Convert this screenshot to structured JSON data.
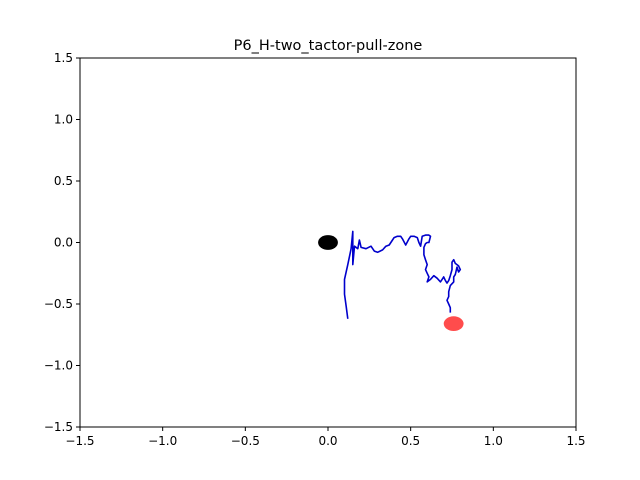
{
  "chart_data": {
    "type": "scatter",
    "title": "P6_H-two_tactor-pull-zone",
    "xlabel": "",
    "ylabel": "",
    "xlim": [
      -1.5,
      1.5
    ],
    "ylim": [
      -1.5,
      1.5
    ],
    "xticks": [
      "−1.5",
      "−1.0",
      "−0.5",
      "0.0",
      "0.5",
      "1.0",
      "1.5"
    ],
    "yticks": [
      "−1.5",
      "−1.0",
      "−0.5",
      "0.0",
      "0.5",
      "1.0",
      "1.5"
    ],
    "xtick_values": [
      -1.5,
      -1.0,
      -0.5,
      0.0,
      0.5,
      1.0,
      1.5
    ],
    "ytick_values": [
      -1.5,
      -1.0,
      -0.5,
      0.0,
      0.5,
      1.0,
      1.5
    ],
    "grid": false,
    "trajectory": {
      "color": "#0000cc",
      "points": [
        [
          0.12,
          -0.62
        ],
        [
          0.11,
          -0.52
        ],
        [
          0.1,
          -0.42
        ],
        [
          0.1,
          -0.3
        ],
        [
          0.12,
          -0.18
        ],
        [
          0.14,
          -0.05
        ],
        [
          0.15,
          0.09
        ],
        [
          0.15,
          -0.06
        ],
        [
          0.15,
          -0.18
        ],
        [
          0.16,
          -0.03
        ],
        [
          0.18,
          -0.05
        ],
        [
          0.19,
          0.02
        ],
        [
          0.2,
          -0.04
        ],
        [
          0.23,
          -0.05
        ],
        [
          0.26,
          -0.03
        ],
        [
          0.28,
          -0.07
        ],
        [
          0.3,
          -0.08
        ],
        [
          0.33,
          -0.06
        ],
        [
          0.35,
          -0.03
        ],
        [
          0.37,
          -0.02
        ],
        [
          0.39,
          0.02
        ],
        [
          0.4,
          0.04
        ],
        [
          0.42,
          0.05
        ],
        [
          0.44,
          0.05
        ],
        [
          0.45,
          0.03
        ],
        [
          0.47,
          -0.02
        ],
        [
          0.49,
          0.03
        ],
        [
          0.5,
          0.05
        ],
        [
          0.52,
          0.05
        ],
        [
          0.54,
          0.04
        ],
        [
          0.55,
          0.0
        ],
        [
          0.56,
          -0.03
        ],
        [
          0.57,
          0.05
        ],
        [
          0.59,
          0.06
        ],
        [
          0.61,
          0.06
        ],
        [
          0.62,
          0.05
        ],
        [
          0.61,
          0.0
        ],
        [
          0.6,
          0.0
        ],
        [
          0.59,
          -0.01
        ],
        [
          0.58,
          -0.04
        ],
        [
          0.58,
          -0.1
        ],
        [
          0.59,
          -0.14
        ],
        [
          0.6,
          -0.18
        ],
        [
          0.59,
          -0.22
        ],
        [
          0.6,
          -0.25
        ],
        [
          0.61,
          -0.28
        ],
        [
          0.6,
          -0.32
        ],
        [
          0.62,
          -0.3
        ],
        [
          0.64,
          -0.27
        ],
        [
          0.66,
          -0.29
        ],
        [
          0.68,
          -0.32
        ],
        [
          0.69,
          -0.3
        ],
        [
          0.7,
          -0.28
        ],
        [
          0.71,
          -0.31
        ],
        [
          0.72,
          -0.33
        ],
        [
          0.73,
          -0.31
        ],
        [
          0.74,
          -0.27
        ],
        [
          0.75,
          -0.22
        ],
        [
          0.75,
          -0.16
        ],
        [
          0.76,
          -0.14
        ],
        [
          0.77,
          -0.17
        ],
        [
          0.79,
          -0.19
        ],
        [
          0.8,
          -0.22
        ],
        [
          0.79,
          -0.24
        ],
        [
          0.78,
          -0.2
        ],
        [
          0.77,
          -0.26
        ],
        [
          0.76,
          -0.28
        ],
        [
          0.76,
          -0.32
        ],
        [
          0.74,
          -0.35
        ],
        [
          0.73,
          -0.4
        ],
        [
          0.73,
          -0.44
        ],
        [
          0.72,
          -0.47
        ],
        [
          0.73,
          -0.5
        ],
        [
          0.74,
          -0.53
        ],
        [
          0.74,
          -0.57
        ]
      ]
    },
    "markers": [
      {
        "x": 0.0,
        "y": 0.0,
        "color": "#000000",
        "opacity": 1.0
      },
      {
        "x": 0.76,
        "y": -0.66,
        "color": "#ff0000",
        "opacity": 0.7
      }
    ]
  }
}
